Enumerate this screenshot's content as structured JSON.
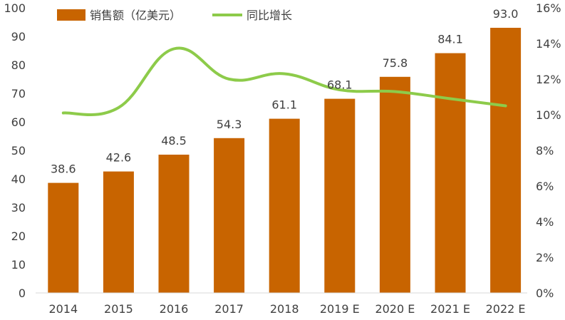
{
  "chart_data": {
    "type": "bar+line",
    "categories": [
      "2014",
      "2015",
      "2016",
      "2017",
      "2018",
      "2019 E",
      "2020 E",
      "2021 E",
      "2022 E"
    ],
    "series": [
      {
        "name": "销售额（亿美元）",
        "type": "bar",
        "axis": "left",
        "color": "#C86400",
        "values": [
          38.6,
          42.6,
          48.5,
          54.3,
          61.1,
          68.1,
          75.8,
          84.1,
          93.0
        ],
        "labels": [
          "38.6",
          "42.6",
          "48.5",
          "54.3",
          "61.1",
          "68.1",
          "75.8",
          "84.1",
          "93.0"
        ]
      },
      {
        "name": "同比增长",
        "type": "line",
        "axis": "right",
        "color": "#8DCB4A",
        "smooth": true,
        "values": [
          10.1,
          10.4,
          13.7,
          12.0,
          12.3,
          11.4,
          11.3,
          10.9,
          10.5
        ]
      }
    ],
    "y_left": {
      "min": 0,
      "max": 100,
      "step": 10,
      "ticks": [
        "0",
        "10",
        "20",
        "30",
        "40",
        "50",
        "60",
        "70",
        "80",
        "90",
        "100"
      ]
    },
    "y_right": {
      "min": 0,
      "max": 16,
      "step": 2,
      "unit": "%",
      "ticks": [
        "0%",
        "2%",
        "4%",
        "6%",
        "8%",
        "10%",
        "12%",
        "14%",
        "16%"
      ]
    },
    "grid": false,
    "legend_position": "top-left"
  }
}
